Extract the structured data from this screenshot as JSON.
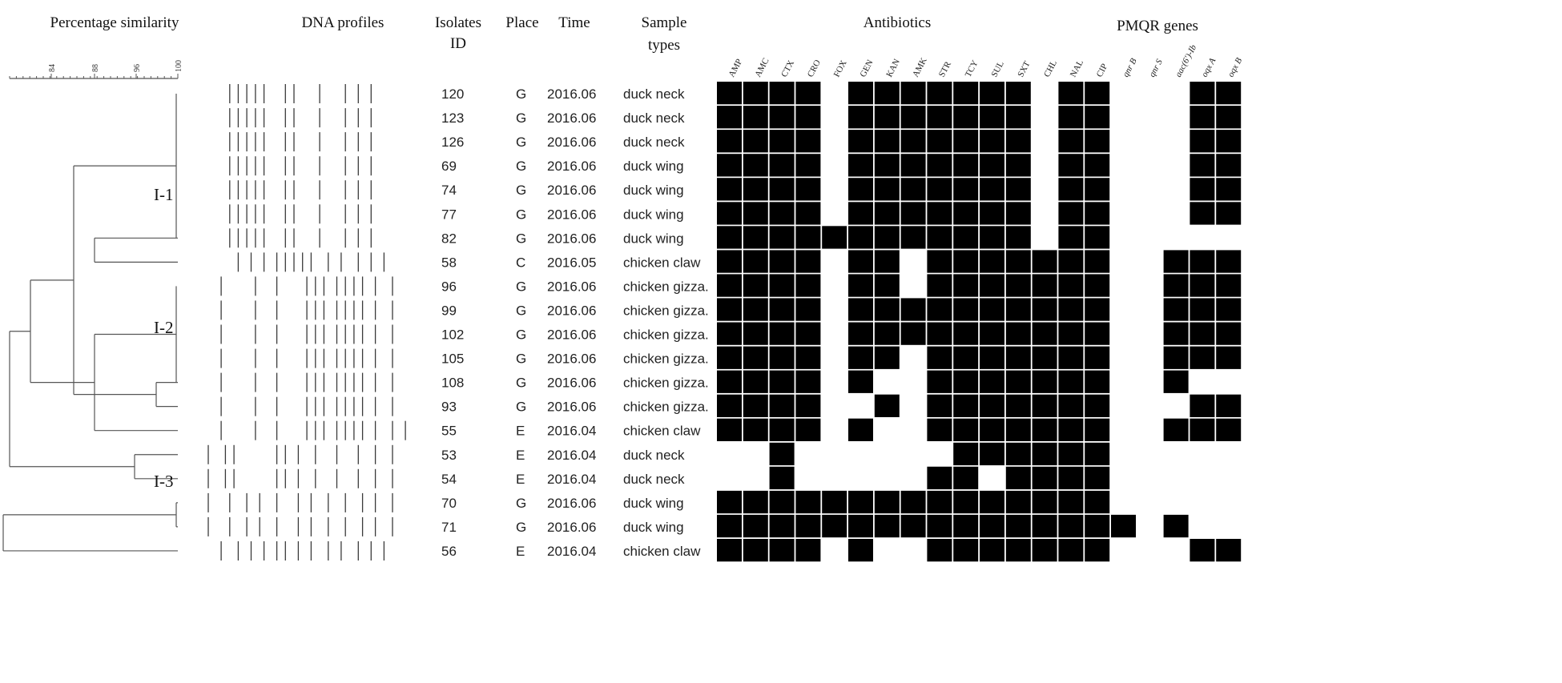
{
  "headers": {
    "similarity": "Percentage similarity",
    "dna": "DNA profiles",
    "isolates_line1": "Isolates",
    "isolates_line2": "ID",
    "place": "Place",
    "time": "Time",
    "sample_line1": "Sample",
    "sample_line2": "types",
    "antibiotics": "Antibiotics",
    "pmqr": "PMQR genes"
  },
  "scale_ticks": [
    "84",
    "88",
    "96",
    "100"
  ],
  "cluster_labels": [
    "I-1",
    "I-2",
    "I-3"
  ],
  "antibiotic_columns": [
    "AMP",
    "AMC",
    "CTX",
    "CRO",
    "FOX",
    "GEN",
    "KAN",
    "AMK",
    "STR",
    "TCY",
    "SUL",
    "SXT",
    "CHL",
    "NAL",
    "CIP"
  ],
  "gene_columns": [
    "qnr B",
    "qnr S",
    "aac(6')-Ib",
    "oqx A",
    "oqx B"
  ],
  "rows": [
    {
      "id": "120",
      "place": "G",
      "time": "2016.06",
      "sample": "duck neck",
      "resistance": "111101111111011",
      "genes": "00011",
      "bands": [
        5,
        7,
        9,
        11,
        13,
        18,
        20,
        26,
        32,
        35,
        38
      ]
    },
    {
      "id": "123",
      "place": "G",
      "time": "2016.06",
      "sample": "duck neck",
      "resistance": "111101111111011",
      "genes": "00011",
      "bands": [
        5,
        7,
        9,
        11,
        13,
        18,
        20,
        26,
        32,
        35,
        38
      ]
    },
    {
      "id": "126",
      "place": "G",
      "time": "2016.06",
      "sample": "duck neck",
      "resistance": "111101111111011",
      "genes": "00011",
      "bands": [
        5,
        7,
        9,
        11,
        13,
        18,
        20,
        26,
        32,
        35,
        38
      ]
    },
    {
      "id": "69",
      "place": "G",
      "time": "2016.06",
      "sample": "duck wing",
      "resistance": "111101111111011",
      "genes": "00011",
      "bands": [
        5,
        7,
        9,
        11,
        13,
        18,
        20,
        26,
        32,
        35,
        38
      ]
    },
    {
      "id": "74",
      "place": "G",
      "time": "2016.06",
      "sample": "duck wing",
      "resistance": "111101111111011",
      "genes": "00011",
      "bands": [
        5,
        7,
        9,
        11,
        13,
        18,
        20,
        26,
        32,
        35,
        38
      ]
    },
    {
      "id": "77",
      "place": "G",
      "time": "2016.06",
      "sample": "duck wing",
      "resistance": "111101111111011",
      "genes": "00011",
      "bands": [
        5,
        7,
        9,
        11,
        13,
        18,
        20,
        26,
        32,
        35,
        38
      ]
    },
    {
      "id": "82",
      "place": "G",
      "time": "2016.06",
      "sample": "duck wing",
      "resistance": "111111111111011",
      "genes": "00000",
      "bands": [
        5,
        7,
        9,
        11,
        13,
        18,
        20,
        26,
        32,
        35,
        38
      ]
    },
    {
      "id": "58",
      "place": "C",
      "time": "2016.05",
      "sample": "chicken claw",
      "resistance": "111101101111111",
      "genes": "00111",
      "bands": [
        7,
        10,
        13,
        16,
        18,
        20,
        22,
        24,
        28,
        31,
        35,
        38,
        41
      ]
    },
    {
      "id": "96",
      "place": "G",
      "time": "2016.06",
      "sample": "chicken gizza.",
      "resistance": "111101101111111",
      "genes": "00111",
      "bands": [
        3,
        11,
        16,
        23,
        25,
        27,
        30,
        32,
        34,
        36,
        39,
        43
      ]
    },
    {
      "id": "99",
      "place": "G",
      "time": "2016.06",
      "sample": "chicken gizza.",
      "resistance": "111101111111111",
      "genes": "00111",
      "bands": [
        3,
        11,
        16,
        23,
        25,
        27,
        30,
        32,
        34,
        36,
        39,
        43
      ]
    },
    {
      "id": "102",
      "place": "G",
      "time": "2016.06",
      "sample": "chicken gizza.",
      "resistance": "111101111111111",
      "genes": "00111",
      "bands": [
        3,
        11,
        16,
        23,
        25,
        27,
        30,
        32,
        34,
        36,
        39,
        43
      ]
    },
    {
      "id": "105",
      "place": "G",
      "time": "2016.06",
      "sample": "chicken gizza.",
      "resistance": "111101101111111",
      "genes": "00111",
      "bands": [
        3,
        11,
        16,
        23,
        25,
        27,
        30,
        32,
        34,
        36,
        39,
        43
      ]
    },
    {
      "id": "108",
      "place": "G",
      "time": "2016.06",
      "sample": "chicken gizza.",
      "resistance": "111101001111111",
      "genes": "00100",
      "bands": [
        3,
        11,
        16,
        23,
        25,
        27,
        30,
        32,
        34,
        36,
        39,
        43
      ]
    },
    {
      "id": "93",
      "place": "G",
      "time": "2016.06",
      "sample": "chicken gizza.",
      "resistance": "111100101111111",
      "genes": "00011",
      "bands": [
        3,
        11,
        16,
        23,
        25,
        27,
        30,
        32,
        34,
        36,
        39,
        43
      ]
    },
    {
      "id": "55",
      "place": "E",
      "time": "2016.04",
      "sample": "chicken claw",
      "resistance": "111101001111111",
      "genes": "00111",
      "bands": [
        3,
        11,
        16,
        23,
        25,
        27,
        30,
        32,
        34,
        36,
        39,
        43,
        46
      ]
    },
    {
      "id": "53",
      "place": "E",
      "time": "2016.04",
      "sample": "duck neck",
      "resistance": "001000000111111",
      "genes": "00000",
      "bands": [
        0,
        4,
        6,
        16,
        18,
        21,
        25,
        30,
        35,
        39,
        43
      ]
    },
    {
      "id": "54",
      "place": "E",
      "time": "2016.04",
      "sample": "duck neck",
      "resistance": "001000001101111",
      "genes": "00000",
      "bands": [
        0,
        4,
        6,
        16,
        18,
        21,
        25,
        30,
        35,
        39,
        43
      ]
    },
    {
      "id": "70",
      "place": "G",
      "time": "2016.06",
      "sample": "duck wing",
      "resistance": "111111111111111",
      "genes": "00000",
      "bands": [
        0,
        5,
        9,
        12,
        16,
        21,
        24,
        28,
        32,
        36,
        39,
        43
      ]
    },
    {
      "id": "71",
      "place": "G",
      "time": "2016.06",
      "sample": "duck wing",
      "resistance": "111111111111111",
      "genes": "10100",
      "bands": [
        0,
        5,
        9,
        12,
        16,
        21,
        24,
        28,
        32,
        36,
        39,
        43
      ]
    },
    {
      "id": "56",
      "place": "E",
      "time": "2016.04",
      "sample": "chicken claw",
      "resistance": "111101001111111",
      "genes": "00011",
      "bands": [
        3,
        7,
        10,
        13,
        16,
        18,
        21,
        24,
        28,
        31,
        35,
        38,
        41
      ]
    }
  ],
  "dendrogram": [
    {
      "rows": [
        0,
        6
      ],
      "node": 220
    },
    {
      "a": "r6",
      "b": "r7",
      "node": 118
    },
    {
      "rows": [
        8,
        12
      ],
      "node": 220
    },
    {
      "a": "r12",
      "b": "r13",
      "node": 195
    },
    {
      "a": "n3",
      "b": "r14",
      "node": 118
    },
    {
      "a": "n1",
      "b": "n4",
      "node": 92
    },
    {
      "a": "r15",
      "b": "r16",
      "node": 168
    },
    {
      "a": "n5",
      "b": "n6",
      "node": 38
    },
    {
      "a": "r17",
      "b": "r18",
      "node": 220
    },
    {
      "a": "n7",
      "b": "n8",
      "node": 12
    },
    {
      "a": "n9",
      "b": "r19",
      "node": 4
    }
  ],
  "colors": {
    "filled": "#000000",
    "empty": "#ffffff",
    "text": "#111111",
    "line": "#555555"
  }
}
